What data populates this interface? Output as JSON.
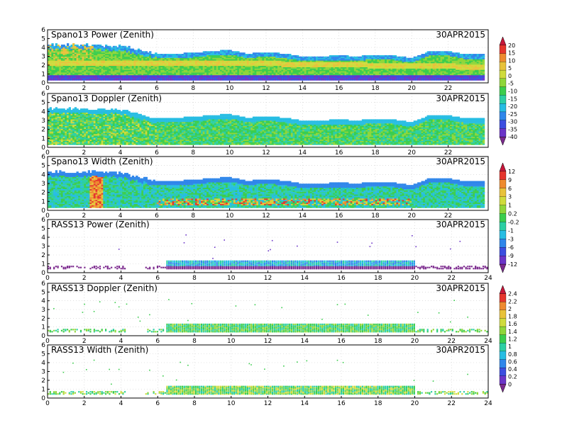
{
  "panels": [
    {
      "title": "Spano13 Power (Zenith)",
      "date": "30APR2015",
      "kind": "spano-power"
    },
    {
      "title": "Spano13 Doppler (Zenith)",
      "date": "30APR2015",
      "kind": "spano-doppler"
    },
    {
      "title": "Spano13 Width (Zenith)",
      "date": "30APR2015",
      "kind": "spano-width"
    },
    {
      "title": "RASS13 Power (Zenith)",
      "date": "30APR2015",
      "kind": "rass-power"
    },
    {
      "title": "RASS13 Doppler (Zenith)",
      "date": "30APR2015",
      "kind": "rass-doppler"
    },
    {
      "title": "RASS13 Width (Zenith)",
      "date": "30APR2015",
      "kind": "rass-width"
    }
  ],
  "colorbars": [
    {
      "name": "power",
      "labels": [
        "20",
        "15",
        "10",
        "5",
        "0",
        "-5",
        "-10",
        "-15",
        "-20",
        "-25",
        "-30",
        "-35",
        "-40"
      ]
    },
    {
      "name": "width",
      "labels": [
        "12",
        "9",
        "6",
        "3",
        "1",
        "0.2",
        "-0.2",
        "-1",
        "-3",
        "-6",
        "-9",
        "-12"
      ]
    },
    {
      "name": "rass",
      "labels": [
        "2.4",
        "2.2",
        "2",
        "1.8",
        "1.6",
        "1.4",
        "1.2",
        "1",
        "0.8",
        "0.6",
        "0.4",
        "0.2",
        "0"
      ]
    }
  ],
  "colors": {
    "scale": [
      "#7c2a8e",
      "#6b35c8",
      "#3c4ee0",
      "#2f86ea",
      "#27bde3",
      "#2dcfa4",
      "#3bcd4d",
      "#8fd63a",
      "#cfdb3c",
      "#e8c23a",
      "#ee8a2f",
      "#e5352d",
      "#c7173a"
    ],
    "background": "#ffffff",
    "gridline": "#cccccc"
  },
  "chart_data": [
    {
      "type": "heatmap",
      "title": "Spano13 Power (Zenith)",
      "date": "30APR2015",
      "x_ticks": [
        "0",
        "2",
        "4",
        "6",
        "8",
        "10",
        "12",
        "14",
        "16",
        "18",
        "20",
        "22"
      ],
      "xlim": [
        0,
        24.2
      ],
      "y_ticks": [
        "0",
        "1",
        "2",
        "3",
        "4",
        "5",
        "6"
      ],
      "ylim": [
        0,
        6
      ],
      "top_height_profile": {
        "x": [
          0,
          2,
          4,
          6,
          7,
          8,
          9,
          10,
          11,
          12,
          13,
          14,
          15,
          16,
          17,
          18,
          19,
          20,
          21,
          22,
          23,
          24
        ],
        "y": [
          4.3,
          4.3,
          4.2,
          3.3,
          3.3,
          3.4,
          3.6,
          3.7,
          3.3,
          3.5,
          3.3,
          3.0,
          3.0,
          3.1,
          3.0,
          3.2,
          3.1,
          2.8,
          3.6,
          3.6,
          3.2,
          3.2
        ]
      },
      "dominant_value_range": [
        -20,
        -5
      ],
      "bright_layer_height_km": [
        2.3,
        1.8
      ],
      "low_value_layer_height_km": 0.7
    },
    {
      "type": "heatmap",
      "title": "Spano13 Doppler (Zenith)",
      "date": "30APR2015",
      "x_ticks": [
        "0",
        "2",
        "4",
        "6",
        "8",
        "10",
        "12",
        "14",
        "16",
        "18",
        "20",
        "22"
      ],
      "xlim": [
        0,
        24.2
      ],
      "y_ticks": [
        "0",
        "1",
        "2",
        "3",
        "4",
        "5",
        "6"
      ],
      "ylim": [
        0,
        6
      ]
    },
    {
      "type": "heatmap",
      "title": "Spano13 Width (Zenith)",
      "date": "30APR2015",
      "x_ticks": [
        "0",
        "2",
        "4",
        "6",
        "8",
        "10",
        "12",
        "14",
        "16",
        "18",
        "20",
        "22"
      ],
      "xlim": [
        0,
        24.2
      ],
      "y_ticks": [
        "0",
        "1",
        "2",
        "3",
        "4",
        "5",
        "6"
      ],
      "ylim": [
        0,
        6
      ],
      "high_value_layer_height_km": 1.0
    },
    {
      "type": "heatmap",
      "title": "RASS13 Power (Zenith)",
      "date": "30APR2015",
      "x_ticks": [
        "0",
        "2",
        "4",
        "6",
        "8",
        "10",
        "12",
        "14",
        "16",
        "18",
        "20",
        "22",
        "24"
      ],
      "xlim": [
        0,
        24
      ],
      "y_ticks": [
        "0",
        "1",
        "2",
        "3",
        "4",
        "5",
        "6"
      ],
      "ylim": [
        0,
        6
      ],
      "data_extent_km": [
        0.5,
        1.5
      ],
      "dense_hours": [
        6.5,
        20
      ]
    },
    {
      "type": "heatmap",
      "title": "RASS13 Doppler (Zenith)",
      "date": "30APR2015",
      "x_ticks": [
        "0",
        "2",
        "4",
        "6",
        "8",
        "10",
        "12",
        "14",
        "16",
        "18",
        "20",
        "22",
        "24"
      ],
      "xlim": [
        0,
        24
      ],
      "y_ticks": [
        "0",
        "1",
        "2",
        "3",
        "4",
        "5",
        "6"
      ],
      "ylim": [
        0,
        6
      ],
      "data_extent_km": [
        0.5,
        1.5
      ],
      "dense_hours": [
        6.5,
        20
      ]
    },
    {
      "type": "heatmap",
      "title": "RASS13 Width (Zenith)",
      "date": "30APR2015",
      "x_ticks": [
        "0",
        "2",
        "4",
        "6",
        "8",
        "10",
        "12",
        "14",
        "16",
        "18",
        "20",
        "22",
        "24"
      ],
      "xlim": [
        0,
        24
      ],
      "y_ticks": [
        "0",
        "1",
        "2",
        "3",
        "4",
        "5",
        "6"
      ],
      "ylim": [
        0,
        6
      ],
      "data_extent_km": [
        0.5,
        1.5
      ],
      "dense_hours": [
        6.5,
        20
      ]
    }
  ]
}
